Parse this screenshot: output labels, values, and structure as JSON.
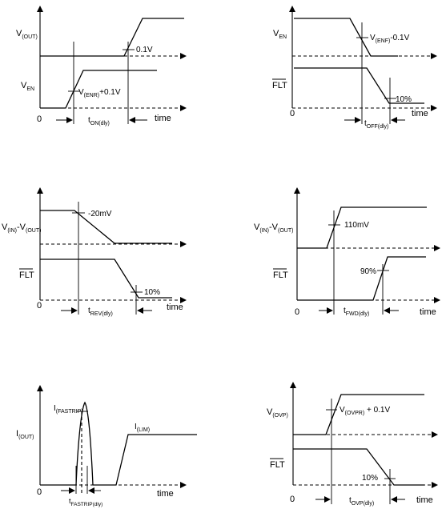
{
  "panels": {
    "turn_on": {
      "v_out": {
        "main": "V",
        "sub": "(OUT)"
      },
      "v_en": {
        "main": "V",
        "sub": "EN"
      },
      "threshold_low": {
        "main": "V",
        "sub": "(ENR)",
        "suffix": "+0.1V"
      },
      "threshold_high": "0.1V",
      "origin": "0",
      "delay": {
        "main": "t",
        "sub": "ON(dly)"
      },
      "time": "time"
    },
    "turn_off": {
      "v_en": {
        "main": "V",
        "sub": "EN"
      },
      "flt": "FLT",
      "threshold_high": {
        "main": "V",
        "sub": "(ENF)",
        "suffix": "-0.1V"
      },
      "threshold_low": "10%",
      "origin": "0",
      "delay": {
        "main": "t",
        "sub": "OFF(dly)"
      },
      "time": "time"
    },
    "reverse": {
      "v_in_out": {
        "a": "V",
        "a_sub": "(IN)",
        "mid": "-V",
        "b_sub": "(OUT)"
      },
      "flt": "FLT",
      "threshold_high": "-20mV",
      "threshold_low": "10%",
      "origin": "0",
      "delay": {
        "main": "t",
        "sub": "REV(dly)"
      },
      "time": "time"
    },
    "forward": {
      "v_in_out": {
        "a": "V",
        "a_sub": "(IN)",
        "mid": "-V",
        "b_sub": "(OUT)"
      },
      "flt": "FLT",
      "threshold_high": "110mV",
      "threshold_low": "90%",
      "origin": "0",
      "delay": {
        "main": "t",
        "sub": "FWD(dly)"
      },
      "time": "time"
    },
    "fast_trip": {
      "i_out": {
        "main": "I",
        "sub": "(OUT)"
      },
      "i_fasttrip": {
        "main": "I",
        "sub": "(FASTRIP)"
      },
      "i_lim": {
        "main": "I",
        "sub": "(LIM)"
      },
      "origin": "0",
      "delay": {
        "main": "t",
        "sub": "FASTRIP(dly)"
      },
      "time": "time"
    },
    "ovp": {
      "v_ovp": {
        "main": "V",
        "sub": "(OVP)"
      },
      "threshold_high": {
        "main": "V",
        "sub": "(OVPR)",
        "suffix": " + 0.1V"
      },
      "flt": "FLT",
      "threshold_low": "10%",
      "origin": "0",
      "delay": {
        "main": "t",
        "sub": "OVP(dly)"
      },
      "time": "time"
    }
  }
}
